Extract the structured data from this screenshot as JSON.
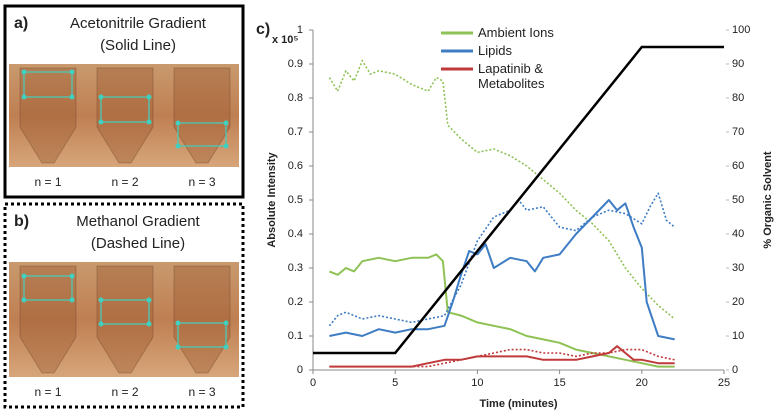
{
  "panels": [
    {
      "label": "a)",
      "title": "Acetonitrile Gradient",
      "subtitle": "(Solid Line)",
      "samples": [
        "n = 1",
        "n = 2",
        "n = 3"
      ]
    },
    {
      "label": "b)",
      "title": "Methanol Gradient",
      "subtitle": "(Dashed Line)",
      "samples": [
        "n = 1",
        "n = 2",
        "n = 3"
      ]
    }
  ],
  "chart_data": {
    "type": "line",
    "label": "c)",
    "y_multiplier": "x 10⁵",
    "xlabel": "Time (minutes)",
    "ylabel": "Absolute Intensity",
    "y2label": "% Organic Solvent",
    "xlim": [
      0,
      25
    ],
    "xticks": [
      0,
      5,
      10,
      15,
      20,
      25
    ],
    "ylim": [
      0,
      1
    ],
    "yticks": [
      0,
      0.1,
      0.2,
      0.3,
      0.4,
      0.5,
      0.6,
      0.7,
      0.8,
      0.9,
      1
    ],
    "y2lim": [
      0,
      100
    ],
    "y2ticks": [
      0,
      10,
      20,
      30,
      40,
      50,
      60,
      70,
      80,
      90,
      100
    ],
    "series": [
      {
        "name": "Ambient Ions",
        "color": "#8fc255",
        "acetonitrile": {
          "x": [
            1,
            1.5,
            2,
            2.5,
            3,
            4,
            5,
            6,
            7,
            7.5,
            7.9,
            8.2,
            9,
            10,
            11,
            12,
            13,
            14,
            15,
            16,
            17,
            18,
            19,
            20,
            21,
            22
          ],
          "values": [
            0.29,
            0.28,
            0.3,
            0.29,
            0.32,
            0.33,
            0.32,
            0.33,
            0.33,
            0.34,
            0.32,
            0.17,
            0.16,
            0.14,
            0.13,
            0.12,
            0.1,
            0.09,
            0.08,
            0.06,
            0.05,
            0.04,
            0.03,
            0.02,
            0.01,
            0.01
          ]
        },
        "methanol": {
          "x": [
            1,
            1.5,
            2,
            2.5,
            3,
            3.5,
            4,
            5,
            6,
            7,
            7.5,
            7.9,
            8.2,
            8.6,
            9,
            10,
            11,
            12,
            13,
            14,
            15,
            16,
            17,
            18,
            19,
            20,
            21,
            22
          ],
          "values": [
            0.86,
            0.82,
            0.88,
            0.85,
            0.91,
            0.87,
            0.88,
            0.87,
            0.84,
            0.82,
            0.86,
            0.85,
            0.72,
            0.7,
            0.68,
            0.64,
            0.65,
            0.63,
            0.6,
            0.56,
            0.52,
            0.47,
            0.43,
            0.38,
            0.3,
            0.24,
            0.19,
            0.15
          ]
        }
      },
      {
        "name": "Lipids",
        "color": "#3e7cc4",
        "acetonitrile": {
          "x": [
            1,
            2,
            3,
            4,
            5,
            6,
            7,
            8,
            8.5,
            9,
            9.5,
            10,
            10.5,
            11,
            12,
            13,
            13.5,
            14,
            15,
            16,
            17,
            18,
            18.5,
            19,
            19.5,
            20,
            20.3,
            21,
            22
          ],
          "values": [
            0.1,
            0.11,
            0.1,
            0.12,
            0.11,
            0.12,
            0.12,
            0.13,
            0.2,
            0.28,
            0.35,
            0.34,
            0.37,
            0.3,
            0.33,
            0.32,
            0.29,
            0.33,
            0.34,
            0.4,
            0.45,
            0.5,
            0.47,
            0.49,
            0.42,
            0.36,
            0.2,
            0.1,
            0.09
          ]
        },
        "methanol": {
          "x": [
            1,
            1.5,
            2,
            3,
            4,
            5,
            6,
            7,
            8,
            9,
            10,
            11,
            12,
            12.5,
            13,
            14,
            15,
            16,
            17,
            18,
            19,
            20,
            20.5,
            21,
            21.5,
            22
          ],
          "values": [
            0.13,
            0.16,
            0.17,
            0.15,
            0.16,
            0.15,
            0.14,
            0.15,
            0.16,
            0.25,
            0.38,
            0.45,
            0.47,
            0.5,
            0.47,
            0.48,
            0.42,
            0.41,
            0.45,
            0.47,
            0.46,
            0.43,
            0.48,
            0.52,
            0.44,
            0.42
          ]
        }
      },
      {
        "name": "Lapatinib & Metabolites",
        "color": "#c0393b",
        "acetonitrile": {
          "x": [
            1,
            3,
            5,
            6,
            7,
            8,
            9,
            10,
            11,
            12,
            13,
            14,
            15,
            16,
            17,
            18,
            18.5,
            19,
            19.5,
            20,
            21,
            22
          ],
          "values": [
            0.01,
            0.01,
            0.01,
            0.01,
            0.02,
            0.03,
            0.03,
            0.04,
            0.04,
            0.04,
            0.04,
            0.03,
            0.03,
            0.03,
            0.04,
            0.05,
            0.07,
            0.05,
            0.03,
            0.03,
            0.02,
            0.02
          ]
        },
        "methanol": {
          "x": [
            1,
            3,
            5,
            7,
            8,
            9,
            10,
            11,
            12,
            13,
            14,
            15,
            16,
            17,
            18,
            19,
            20,
            21,
            22
          ],
          "values": [
            0.01,
            0.01,
            0.01,
            0.01,
            0.02,
            0.03,
            0.04,
            0.05,
            0.06,
            0.06,
            0.05,
            0.05,
            0.04,
            0.05,
            0.05,
            0.06,
            0.06,
            0.04,
            0.03
          ]
        }
      }
    ],
    "y2_series": {
      "axis": "y2",
      "color": "#000000",
      "x": [
        0,
        5,
        20,
        25
      ],
      "values": [
        5,
        5,
        95,
        95
      ]
    }
  }
}
